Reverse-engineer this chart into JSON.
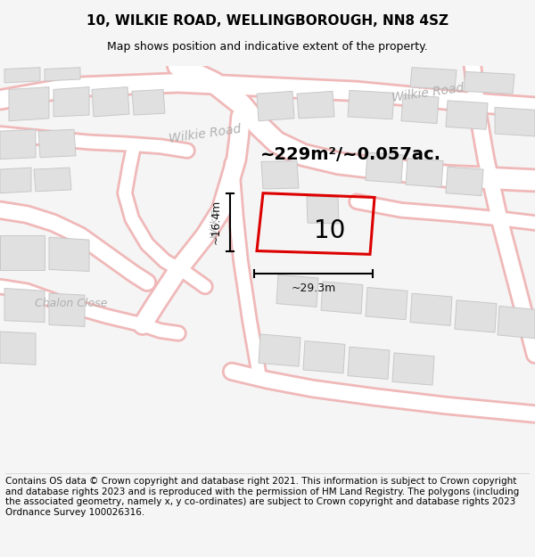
{
  "title": "10, WILKIE ROAD, WELLINGBOROUGH, NN8 4SZ",
  "subtitle": "Map shows position and indicative extent of the property.",
  "footer": "Contains OS data © Crown copyright and database right 2021. This information is subject to Crown copyright and database rights 2023 and is reproduced with the permission of HM Land Registry. The polygons (including the associated geometry, namely x, y co-ordinates) are subject to Crown copyright and database rights 2023 Ordnance Survey 100026316.",
  "bg_color": "#f5f5f5",
  "map_bg": "#ffffff",
  "area_text": "~229m²/~0.057ac.",
  "property_label": "10",
  "dim_horizontal": "~29.3m",
  "dim_vertical": "~16.4m",
  "road_label_diag": "Wilkie Road",
  "road_label_top": "Wilkie Road",
  "street_label": "Chalon Close",
  "road_label_left": "Wilkie",
  "title_fontsize": 11,
  "subtitle_fontsize": 9,
  "footer_fontsize": 7.5,
  "polygon_color": "#dd0000",
  "road_stroke_color": "#f0b8b8",
  "road_fill_color": "#ffffff",
  "building_color": "#e0e0e0",
  "building_edge": "#c8c8c8",
  "road_label_color": "#b0b0b0",
  "dim_text_color": "#111111",
  "area_text_fontsize": 14,
  "label_fontsize": 20
}
